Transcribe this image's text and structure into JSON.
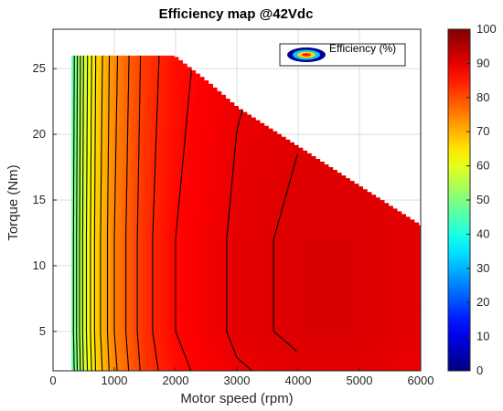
{
  "chart_data": {
    "type": "heatmap",
    "title": "Efficiency map @42Vdc",
    "xlabel": "Motor speed (rpm)",
    "ylabel": "Torque (Nm)",
    "xlim": [
      0,
      6000
    ],
    "ylim": [
      2,
      28
    ],
    "x_ticks": [
      0,
      1000,
      2000,
      3000,
      4000,
      5000,
      6000
    ],
    "y_ticks": [
      5,
      10,
      15,
      20,
      25
    ],
    "grid": true,
    "legend": {
      "entry": "Efficiency (%)",
      "placement": "top-right"
    },
    "colorbar": {
      "min": 0,
      "max": 100,
      "ticks": [
        0,
        10,
        20,
        30,
        40,
        50,
        60,
        70,
        80,
        90,
        100
      ],
      "colormap": "jet"
    },
    "data_region": {
      "speed_min_rpm": 300,
      "torque_min_nm": 2,
      "torque_max_nm": 26,
      "max_torque_envelope": [
        [
          300,
          26
        ],
        [
          1950,
          26
        ],
        [
          2500,
          24
        ],
        [
          3000,
          22
        ],
        [
          4000,
          19
        ],
        [
          5000,
          16
        ],
        [
          6000,
          13
        ]
      ]
    },
    "efficiency_samples": [
      {
        "speed_rpm": 300,
        "efficiency_pct": 46
      },
      {
        "speed_rpm": 500,
        "efficiency_pct": 58
      },
      {
        "speed_rpm": 700,
        "efficiency_pct": 67
      },
      {
        "speed_rpm": 1000,
        "efficiency_pct": 75
      },
      {
        "speed_rpm": 1500,
        "efficiency_pct": 83
      },
      {
        "speed_rpm": 2000,
        "efficiency_pct": 87
      },
      {
        "speed_rpm": 3000,
        "efficiency_pct": 90
      },
      {
        "speed_rpm": 4000,
        "efficiency_pct": 91
      },
      {
        "speed_rpm": 5000,
        "efficiency_pct": 91
      },
      {
        "speed_rpm": 6000,
        "efficiency_pct": 90
      }
    ],
    "colors": {
      "low": "#00008f",
      "mid": "#80ff80",
      "high": "#800000",
      "contour": "#000000"
    }
  }
}
